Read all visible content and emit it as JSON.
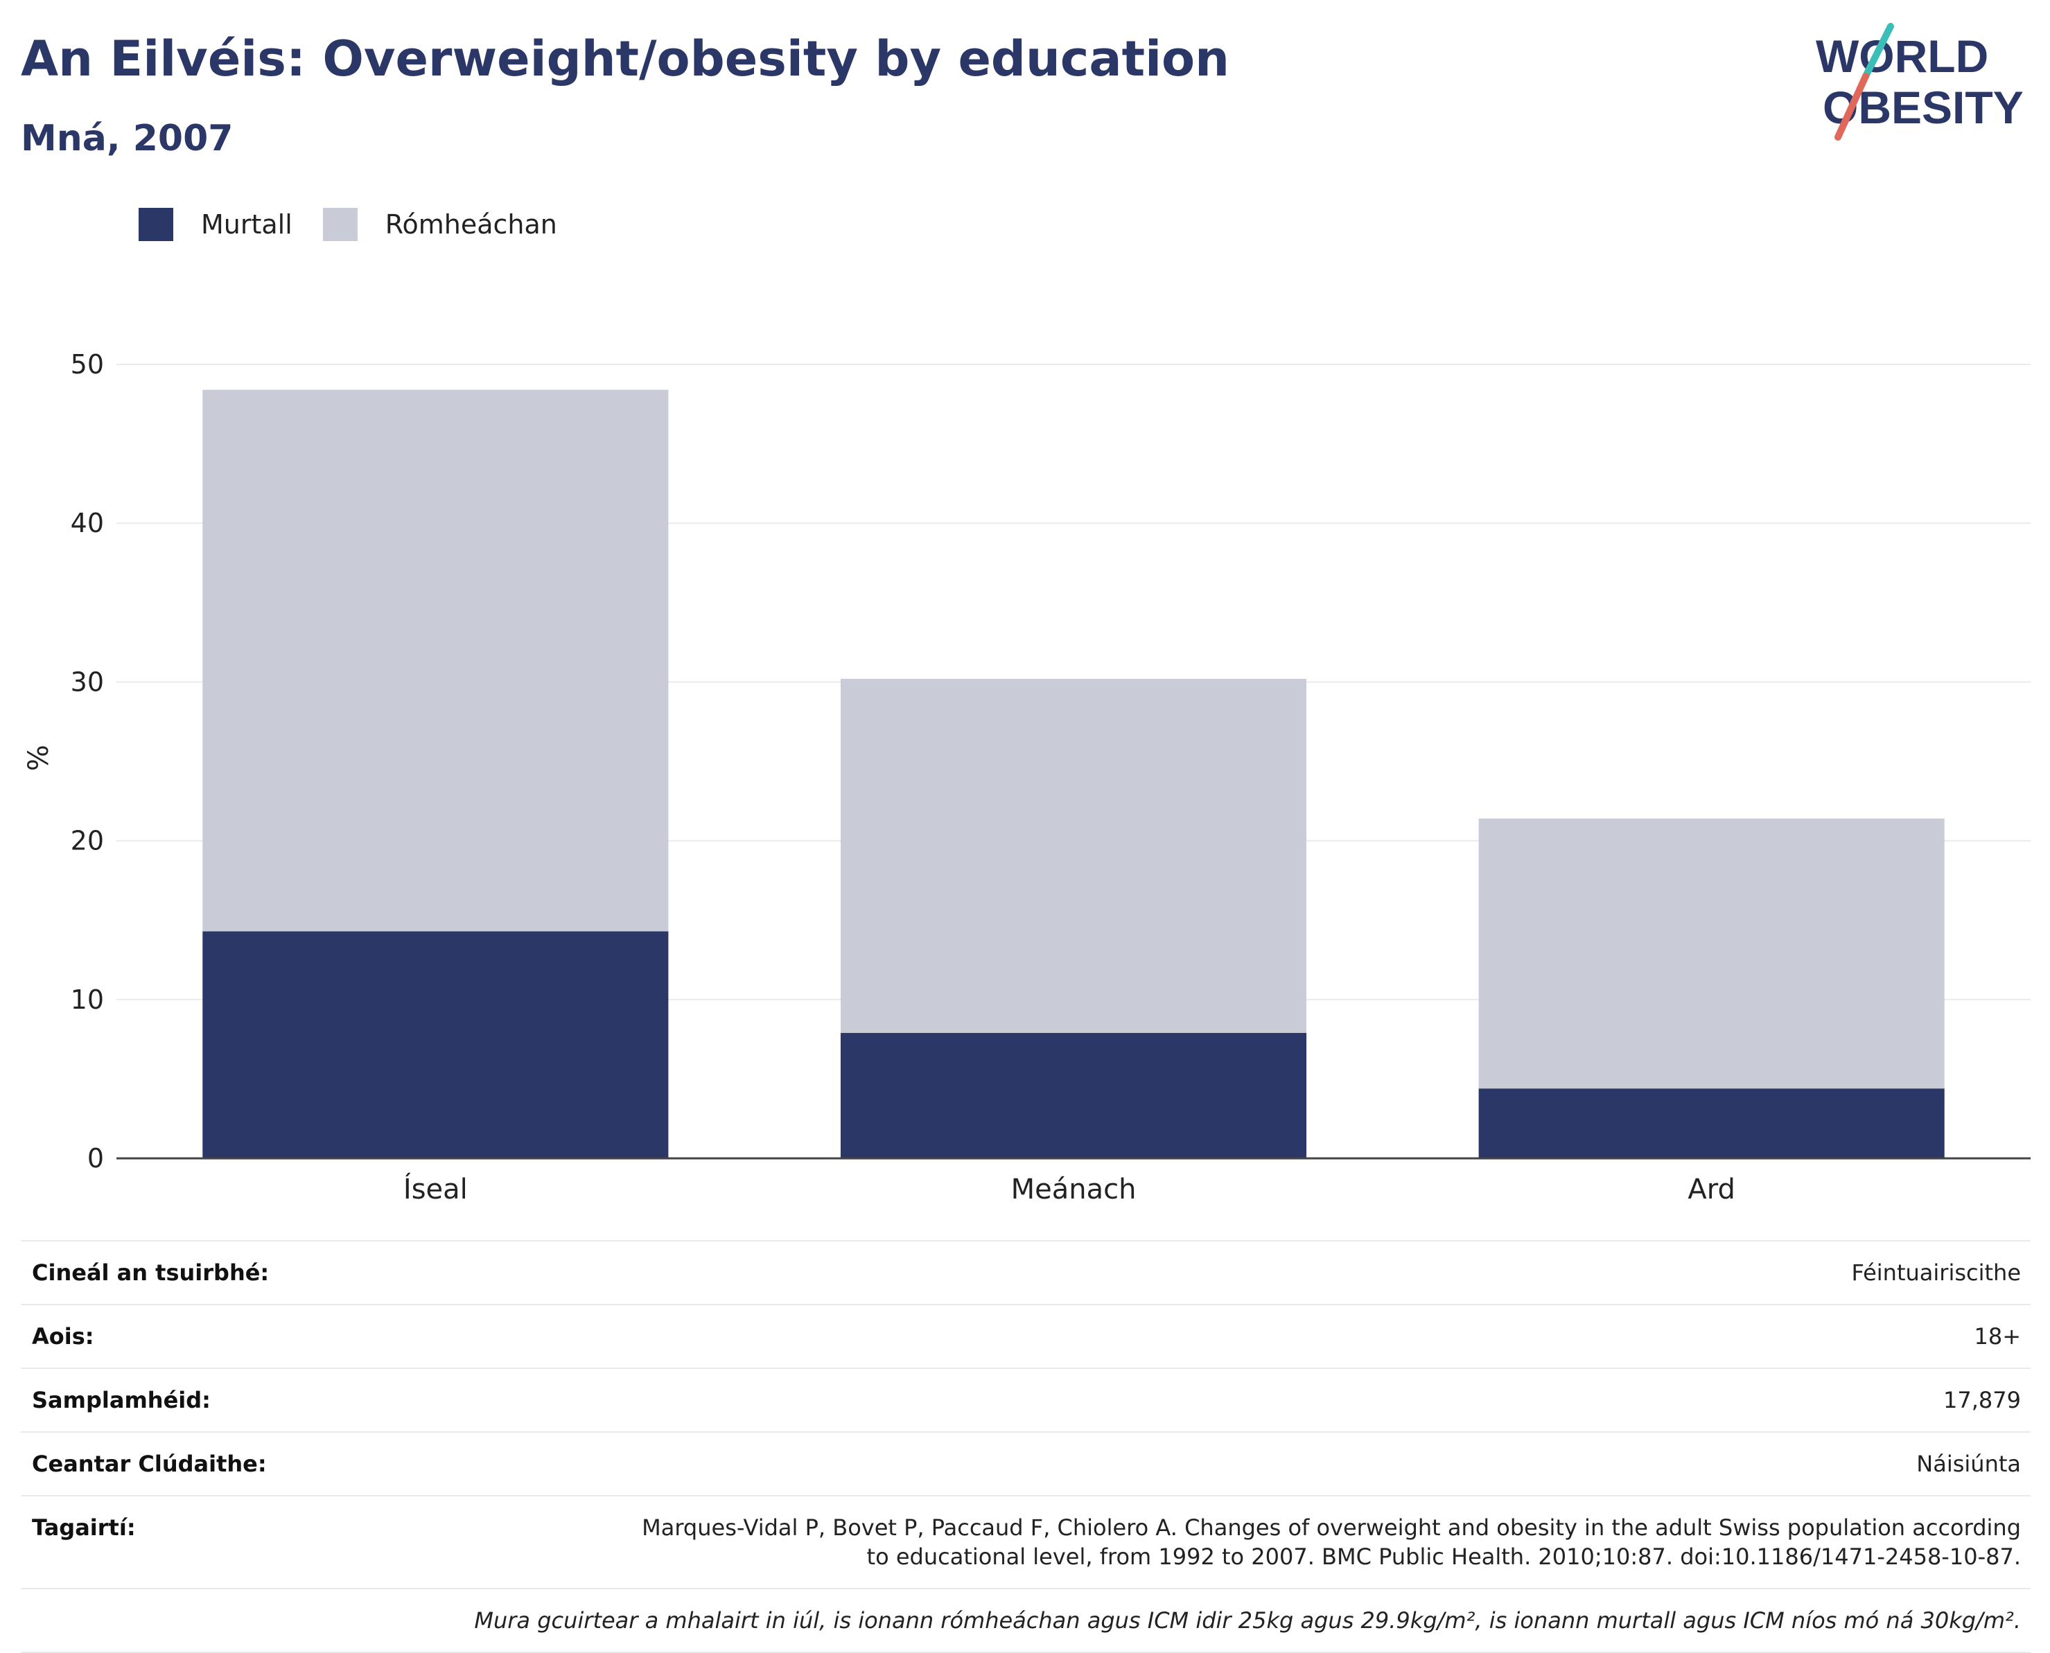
{
  "header": {
    "title": "An Eilvéis: Overweight/obesity by education",
    "subtitle": "Mná, 2007"
  },
  "logo": {
    "line1": "WORLD",
    "line2": "OBESITY",
    "colors": {
      "text": "#2b3767",
      "slash_top": "#3bbdb8",
      "slash_bottom": "#e0685a"
    }
  },
  "chart_data": {
    "type": "bar",
    "stacked": true,
    "categories": [
      "Íseal",
      "Meánach",
      "Ard"
    ],
    "series": [
      {
        "name": "Murtall",
        "color": "#2b3767",
        "values": [
          14.3,
          7.9,
          4.4
        ]
      },
      {
        "name": "Rómheáchan",
        "color": "#c9cbd6",
        "values": [
          34.1,
          22.3,
          17.0
        ]
      }
    ],
    "ylabel": "%",
    "ylim": [
      0,
      50
    ],
    "yticks": [
      0,
      10,
      20,
      30,
      40,
      50
    ],
    "grid": true,
    "legend": "top-left"
  },
  "info": {
    "rows": [
      {
        "label": "Cineál an tsuirbhé:",
        "value": "Féintuairiscithe"
      },
      {
        "label": "Aois:",
        "value": "18+"
      },
      {
        "label": "Samplamhéid:",
        "value": "17,879"
      },
      {
        "label": "Ceantar Clúdaithe:",
        "value": "Náisiúnta"
      },
      {
        "label": "Tagairtí:",
        "value": "Marques-Vidal P, Bovet P, Paccaud F, Chiolero A. Changes of overweight and obesity in the adult Swiss population according to educational level, from 1992 to 2007. BMC Public Health. 2010;10:87. doi:10.1186/1471-2458-10-87."
      }
    ],
    "note": "Mura gcuirtear a mhalairt in iúl, is ionann rómheáchan agus ICM idir 25kg agus 29.9kg/m², is ionann murtall agus ICM níos mó ná 30kg/m²."
  }
}
